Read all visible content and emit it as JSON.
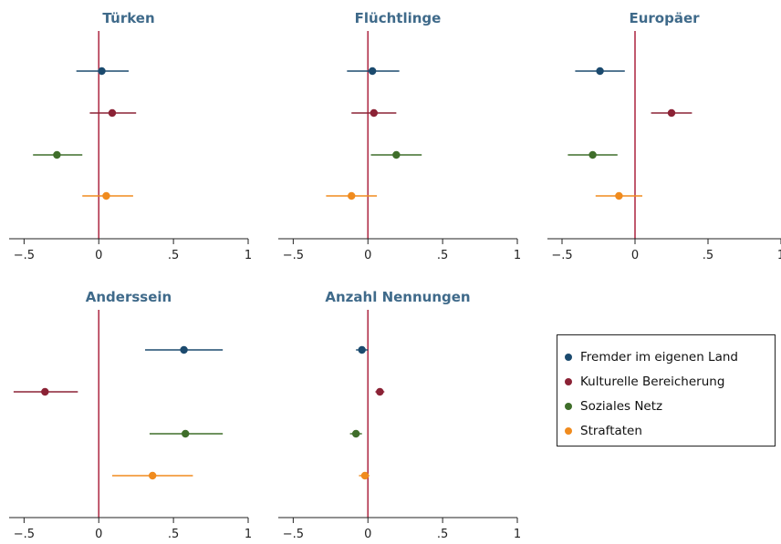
{
  "series_colors": [
    "#1b4a6e",
    "#8b2235",
    "#3f6e2a",
    "#f08b1e"
  ],
  "zero_line_color": "#b0304a",
  "legend": {
    "items": [
      {
        "label": "Fremder im eigenen Land",
        "color": "#1b4a6e"
      },
      {
        "label": "Kulturelle Bereicherung",
        "color": "#8b2235"
      },
      {
        "label": "Soziales Netz",
        "color": "#3f6e2a"
      },
      {
        "label": "Straftaten",
        "color": "#f08b1e"
      }
    ]
  },
  "chart_data": [
    {
      "type": "scatter",
      "title": "Türken",
      "xlim": [
        -0.6,
        1.0
      ],
      "x_ticks": [
        -0.5,
        0,
        0.5,
        1
      ],
      "x_tick_labels": [
        "−.5",
        "0",
        ".5",
        "1"
      ],
      "points": [
        {
          "series": "Fremder im eigenen Land",
          "estimate": 0.02,
          "ci": [
            -0.15,
            0.2
          ]
        },
        {
          "series": "Kulturelle Bereicherung",
          "estimate": 0.09,
          "ci": [
            -0.06,
            0.25
          ]
        },
        {
          "series": "Soziales Netz",
          "estimate": -0.28,
          "ci": [
            -0.44,
            -0.11
          ]
        },
        {
          "series": "Straftaten",
          "estimate": 0.05,
          "ci": [
            -0.11,
            0.23
          ]
        }
      ]
    },
    {
      "type": "scatter",
      "title": "Flüchtlinge",
      "xlim": [
        -0.6,
        1.0
      ],
      "x_ticks": [
        -0.5,
        0,
        0.5,
        1
      ],
      "x_tick_labels": [
        "−.5",
        "0",
        ".5",
        "1"
      ],
      "points": [
        {
          "series": "Fremder im eigenen Land",
          "estimate": 0.03,
          "ci": [
            -0.14,
            0.21
          ]
        },
        {
          "series": "Kulturelle Bereicherung",
          "estimate": 0.04,
          "ci": [
            -0.11,
            0.19
          ]
        },
        {
          "series": "Soziales Netz",
          "estimate": 0.19,
          "ci": [
            0.02,
            0.36
          ]
        },
        {
          "series": "Straftaten",
          "estimate": -0.11,
          "ci": [
            -0.28,
            0.06
          ]
        }
      ]
    },
    {
      "type": "scatter",
      "title": "Europäer",
      "xlim": [
        -0.6,
        1.0
      ],
      "x_ticks": [
        -0.5,
        0,
        0.5,
        1
      ],
      "x_tick_labels": [
        "−.5",
        "0",
        ".5",
        "1"
      ],
      "points": [
        {
          "series": "Fremder im eigenen Land",
          "estimate": -0.24,
          "ci": [
            -0.41,
            -0.07
          ]
        },
        {
          "series": "Kulturelle Bereicherung",
          "estimate": 0.25,
          "ci": [
            0.11,
            0.39
          ]
        },
        {
          "series": "Soziales Netz",
          "estimate": -0.29,
          "ci": [
            -0.46,
            -0.12
          ]
        },
        {
          "series": "Straftaten",
          "estimate": -0.11,
          "ci": [
            -0.27,
            0.05
          ]
        }
      ]
    },
    {
      "type": "scatter",
      "title": "Anderssein",
      "xlim": [
        -0.6,
        1.0
      ],
      "x_ticks": [
        -0.5,
        0,
        0.5,
        1
      ],
      "x_tick_labels": [
        "−.5",
        "0",
        ".5",
        "1"
      ],
      "points": [
        {
          "series": "Fremder im eigenen Land",
          "estimate": 0.57,
          "ci": [
            0.31,
            0.83
          ]
        },
        {
          "series": "Kulturelle Bereicherung",
          "estimate": -0.36,
          "ci": [
            -0.57,
            -0.14
          ]
        },
        {
          "series": "Soziales Netz",
          "estimate": 0.58,
          "ci": [
            0.34,
            0.83
          ]
        },
        {
          "series": "Straftaten",
          "estimate": 0.36,
          "ci": [
            0.09,
            0.63
          ]
        }
      ]
    },
    {
      "type": "scatter",
      "title": "Anzahl Nennungen",
      "xlim": [
        -0.6,
        1.0
      ],
      "x_ticks": [
        -0.5,
        0,
        0.5,
        1
      ],
      "x_tick_labels": [
        "−.5",
        "0",
        ".5",
        "1"
      ],
      "points": [
        {
          "series": "Fremder im eigenen Land",
          "estimate": -0.04,
          "ci": [
            -0.08,
            0.0
          ]
        },
        {
          "series": "Kulturelle Bereicherung",
          "estimate": 0.08,
          "ci": [
            0.05,
            0.11
          ]
        },
        {
          "series": "Soziales Netz",
          "estimate": -0.08,
          "ci": [
            -0.12,
            -0.04
          ]
        },
        {
          "series": "Straftaten",
          "estimate": -0.02,
          "ci": [
            -0.06,
            0.01
          ]
        }
      ]
    }
  ]
}
